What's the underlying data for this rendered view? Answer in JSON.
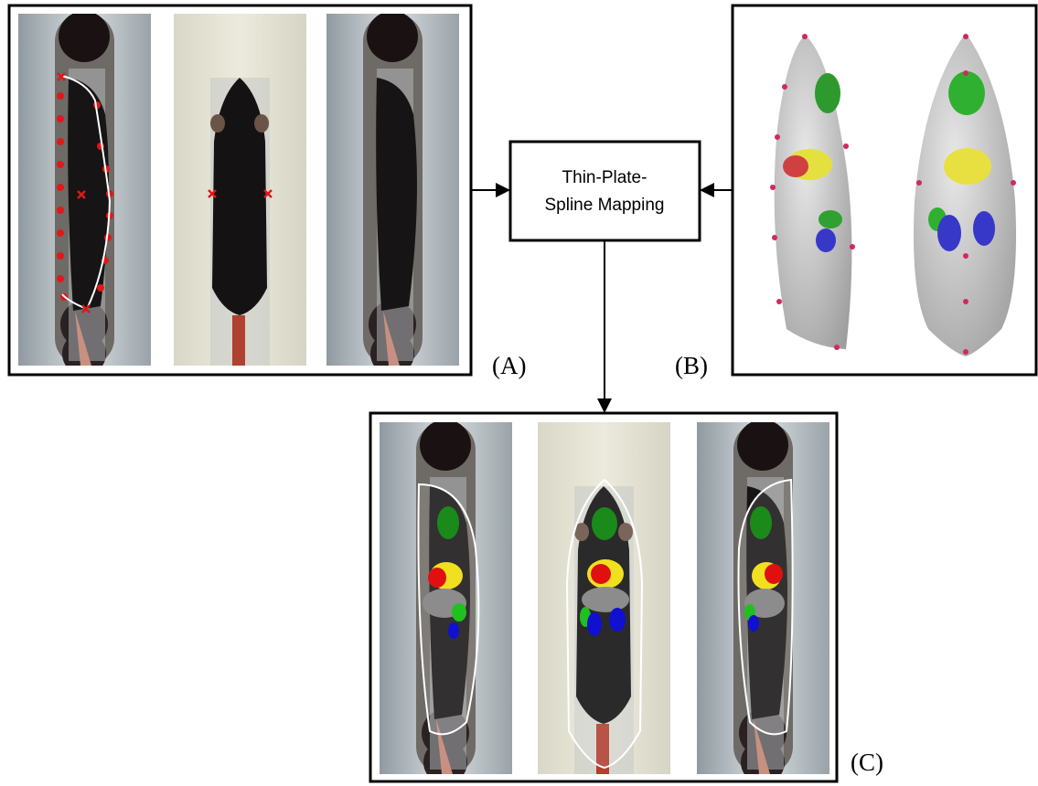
{
  "mapping_box": {
    "lines": [
      "Thin-Plate-",
      "Spline Mapping"
    ]
  },
  "panels": [
    {
      "label": "(A)"
    },
    {
      "label": "(B)"
    },
    {
      "label": "(C)"
    }
  ]
}
